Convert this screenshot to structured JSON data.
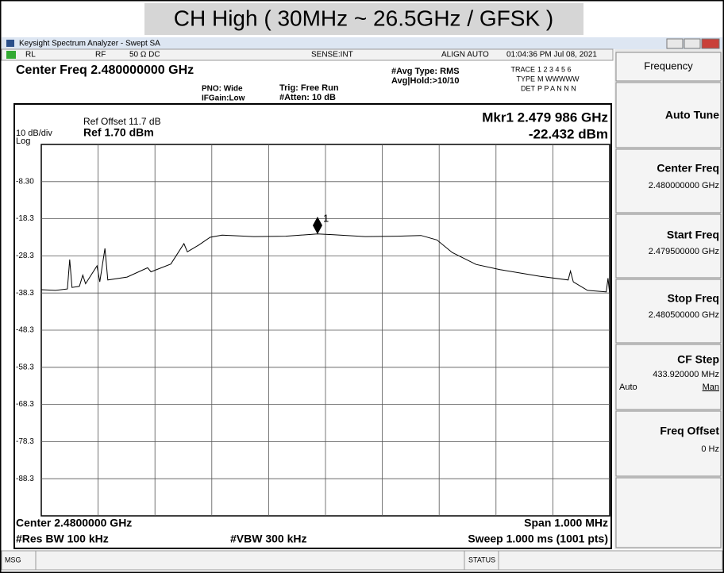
{
  "title": "CH High ( 30MHz ~ 26.5GHz / GFSK )",
  "window": {
    "title": "Keysight Spectrum Analyzer - Swept SA"
  },
  "status_row": {
    "rl": "RL",
    "rf": "RF",
    "impedance": "50 Ω  DC",
    "sense": "SENSE:INT",
    "align": "ALIGN AUTO",
    "timestamp": "01:04:36 PM Jul 08, 2021"
  },
  "settings": {
    "center_freq": "Center Freq 2.480000000 GHz",
    "pno": "PNO: Wide",
    "ifgain": "IFGain:Low",
    "trig": "Trig: Free Run",
    "atten": "#Atten: 10 dB",
    "avg_type": "#Avg Type: RMS",
    "avg_hold": "Avg|Hold:>10/10",
    "trace_label": "TRACE",
    "trace_value": "1 2 3 4 5 6",
    "type_label": "TYPE",
    "type_value": "M WWWWW",
    "det_label": "DET",
    "det_value": "P P A N N N"
  },
  "plot": {
    "type": "line",
    "ref_offset": "Ref Offset 11.7 dB",
    "scale": "10 dB/div",
    "ref_level": "Ref 1.70 dBm",
    "scale_type": "Log",
    "xlim": [
      2.4795,
      2.4805
    ],
    "ylim": [
      -98.3,
      1.7
    ],
    "yticks": [
      {
        "value": -8.3,
        "label": "-8.30"
      },
      -18.3,
      -28.3,
      -38.3,
      -48.3,
      -58.3,
      -68.3,
      -78.3,
      -88.3
    ],
    "color": "#000000",
    "trace": {
      "x": [
        2.4795,
        2.479525,
        2.479546,
        2.47955,
        2.479554,
        2.479567,
        2.479573,
        2.479578,
        2.479598,
        2.479603,
        2.479612,
        2.479617,
        2.479651,
        2.479687,
        2.479693,
        2.479728,
        2.479751,
        2.479757,
        2.479777,
        2.479797,
        2.479818,
        2.479874,
        2.47993,
        2.479986,
        2.480014,
        2.48007,
        2.480126,
        2.480168,
        2.480196,
        2.480223,
        2.480265,
        2.480307,
        2.480377,
        2.480427,
        2.480431,
        2.480436,
        2.480461,
        2.480494,
        2.480497,
        2.4805
      ],
      "y": [
        -37.4,
        -37.6,
        -37.2,
        -29.3,
        -36.8,
        -36.5,
        -33.5,
        -35.8,
        -31.0,
        -35.3,
        -26.3,
        -34.8,
        -34.0,
        -31.5,
        -32.6,
        -30.5,
        -25.0,
        -27.2,
        -25.4,
        -23.3,
        -22.7,
        -23.1,
        -23.0,
        -22.4,
        -22.6,
        -23.1,
        -23.0,
        -22.8,
        -24.0,
        -27.4,
        -30.6,
        -32.0,
        -33.8,
        -34.8,
        -32.4,
        -35.3,
        -37.6,
        -38.0,
        -34.3,
        -38.5
      ]
    },
    "marker": {
      "id": "1",
      "readout": "Mkr1 2.479 986 GHz",
      "amplitude": "-22.432 dBm",
      "x": 2.479986,
      "y": -22.432
    }
  },
  "footer": {
    "center": "Center 2.4800000 GHz",
    "span": "Span 1.000 MHz",
    "rbw": "#Res BW 100 kHz",
    "vbw": "#VBW 300 kHz",
    "sweep": "Sweep  1.000 ms (1001 pts)"
  },
  "message_bar": {
    "msg": "MSG",
    "status": "STATUS"
  },
  "softkeys": {
    "menu": "Frequency",
    "auto_tune": "Auto Tune",
    "center_freq": {
      "label": "Center Freq",
      "value": "2.480000000 GHz"
    },
    "start_freq": {
      "label": "Start Freq",
      "value": "2.479500000 GHz"
    },
    "stop_freq": {
      "label": "Stop Freq",
      "value": "2.480500000 GHz"
    },
    "cf_step": {
      "label": "CF Step",
      "value": "433.920000 MHz",
      "auto": "Auto",
      "man": "Man"
    },
    "freq_offset": {
      "label": "Freq Offset",
      "value": "0 Hz"
    }
  }
}
